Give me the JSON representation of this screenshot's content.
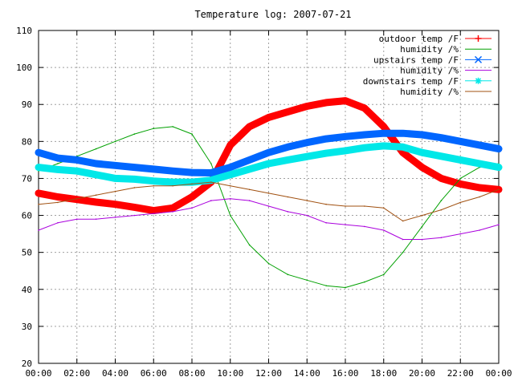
{
  "chart_data": {
    "type": "line",
    "title": "Temperature log: 2007-07-21",
    "xlabel": "",
    "ylabel": "",
    "xlim": [
      "00:00",
      "24:00"
    ],
    "ylim": [
      20,
      110
    ],
    "grid": true,
    "legend_position": "top-right",
    "x_tick_labels": [
      "00:00",
      "02:00",
      "04:00",
      "06:00",
      "08:00",
      "10:00",
      "12:00",
      "14:00",
      "16:00",
      "18:00",
      "20:00",
      "22:00",
      "00:00"
    ],
    "y_tick_labels": [
      "20",
      "30",
      "40",
      "50",
      "60",
      "70",
      "80",
      "90",
      "100",
      "110"
    ],
    "x": [
      "00:00",
      "01:00",
      "02:00",
      "03:00",
      "04:00",
      "05:00",
      "06:00",
      "07:00",
      "08:00",
      "09:00",
      "10:00",
      "11:00",
      "12:00",
      "13:00",
      "14:00",
      "15:00",
      "16:00",
      "17:00",
      "18:00",
      "19:00",
      "20:00",
      "21:00",
      "22:00",
      "23:00",
      "24:00"
    ],
    "series": [
      {
        "name": "outdoor temp /F",
        "color": "#ff0000",
        "marker": "+",
        "values": [
          66,
          65,
          64.3,
          63.6,
          63,
          62.2,
          61.3,
          62,
          65,
          69,
          79,
          84,
          86.5,
          88,
          89.5,
          90.5,
          91,
          89,
          84,
          77,
          73,
          70,
          68.5,
          67.5,
          67
        ]
      },
      {
        "name": "humidity /%",
        "color": "#00a000",
        "marker": "none",
        "values": [
          72,
          74,
          76,
          78,
          80,
          82,
          83.5,
          84,
          82,
          74,
          60,
          52,
          47,
          44,
          42.5,
          41,
          40.5,
          42,
          44,
          50,
          57,
          64,
          70,
          73,
          74
        ]
      },
      {
        "name": "upstairs temp /F",
        "color": "#0066ff",
        "marker": "x",
        "values": [
          77,
          75.5,
          75,
          74,
          73.5,
          73,
          72.5,
          72,
          71.6,
          71.5,
          73,
          75,
          77,
          78.5,
          79.7,
          80.7,
          81.3,
          81.8,
          82.2,
          82.2,
          81.8,
          81,
          80,
          79,
          78
        ]
      },
      {
        "name": "humidity /%",
        "color": "#aa00dd",
        "marker": "none",
        "values": [
          56,
          58,
          59,
          59,
          59.5,
          60,
          60.5,
          61,
          62,
          64,
          64.5,
          64,
          62.5,
          61,
          60,
          58,
          57.5,
          57,
          56,
          53.5,
          53.5,
          54,
          55,
          56,
          57.5
        ]
      },
      {
        "name": "downstairs temp /F",
        "color": "#00e8e8",
        "marker": "*",
        "values": [
          73,
          72.4,
          72,
          71,
          70,
          69.8,
          69.3,
          69,
          69,
          69.5,
          71,
          72.5,
          74,
          75,
          75.9,
          76.8,
          77.5,
          78.3,
          78.8,
          78.5,
          77,
          76,
          75,
          74,
          73
        ]
      },
      {
        "name": "humidity /%",
        "color": "#a05010",
        "marker": "none",
        "values": [
          63,
          63.5,
          64.5,
          65.5,
          66.5,
          67.5,
          68,
          68,
          68.5,
          69,
          68,
          67,
          66,
          65,
          64,
          63,
          62.5,
          62.5,
          62,
          58.5,
          60,
          61.5,
          63.5,
          65,
          67
        ]
      }
    ]
  }
}
